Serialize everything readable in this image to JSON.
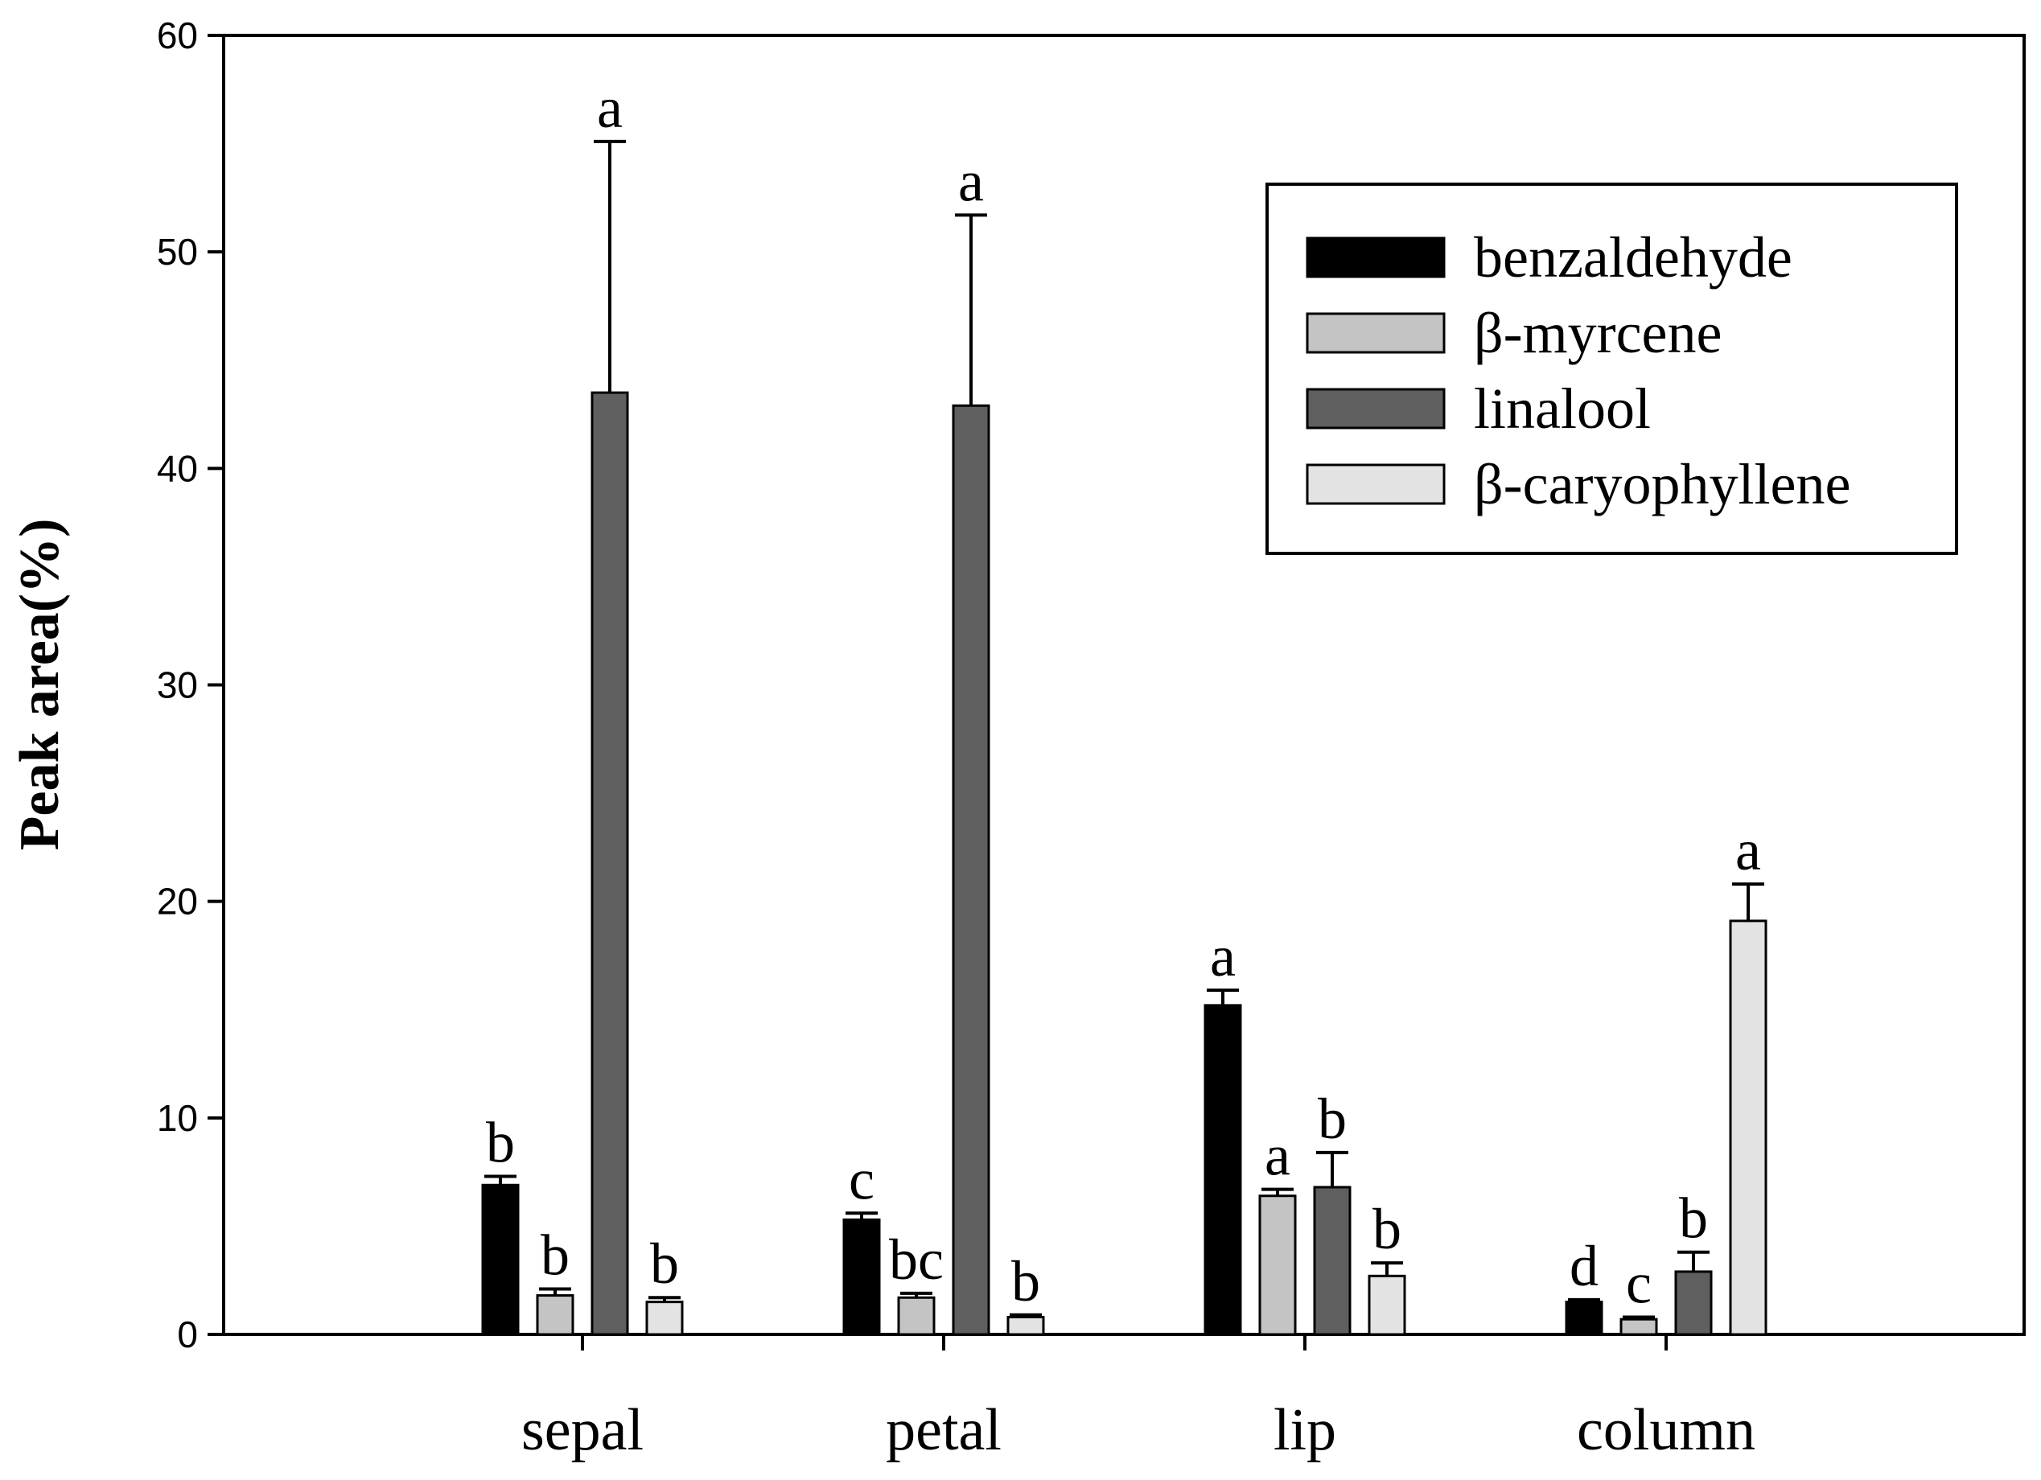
{
  "chart_data": {
    "type": "bar",
    "title": "",
    "xlabel": "",
    "ylabel": "Peak area(%)",
    "ylim": [
      0,
      60
    ],
    "yticks": [
      0,
      10,
      20,
      30,
      40,
      50,
      60
    ],
    "grid": false,
    "legend_position": "top-right",
    "categories": [
      "sepal",
      "petal",
      "lip",
      "column"
    ],
    "series": [
      {
        "name": "benzaldehyde",
        "color": "#000000",
        "values": [
          6.9,
          5.3,
          15.2,
          1.5
        ],
        "errors": [
          0.4,
          0.3,
          0.7,
          0.1
        ],
        "letters": [
          "b",
          "c",
          "a",
          "d"
        ]
      },
      {
        "name": "β-myrcene",
        "color": "#c4c4c4",
        "values": [
          1.8,
          1.7,
          6.4,
          0.7
        ],
        "errors": [
          0.3,
          0.2,
          0.3,
          0.1
        ],
        "letters": [
          "b",
          "bc",
          "a",
          "c"
        ]
      },
      {
        "name": "linalool",
        "color": "#5f5f5f",
        "values": [
          43.5,
          42.9,
          6.8,
          2.9
        ],
        "errors": [
          11.6,
          8.8,
          1.6,
          0.9
        ],
        "letters": [
          "a",
          "a",
          "b",
          "b"
        ]
      },
      {
        "name": "β-caryophyllene",
        "color": "#e3e3e3",
        "values": [
          1.5,
          0.8,
          2.7,
          19.1
        ],
        "errors": [
          0.2,
          0.1,
          0.6,
          1.7
        ],
        "letters": [
          "b",
          "b",
          "b",
          "a"
        ]
      }
    ]
  }
}
